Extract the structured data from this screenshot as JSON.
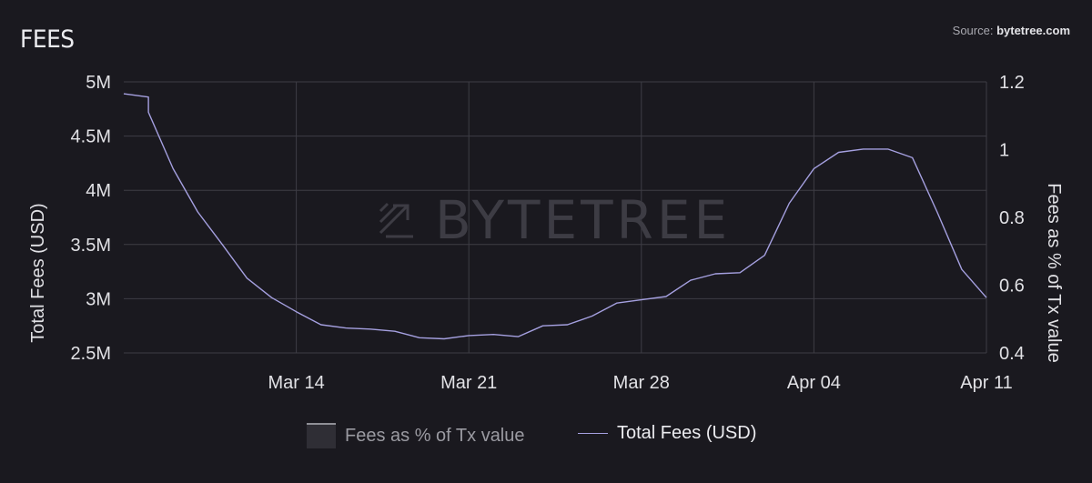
{
  "header": {
    "title": "FEES",
    "source_prefix": "Source: ",
    "source_name": "bytetree.com"
  },
  "watermark": "BYTETREE",
  "legend": {
    "items": [
      {
        "label": "Fees as % of Tx value"
      },
      {
        "label": "Total Fees (USD)"
      }
    ]
  },
  "colors": {
    "background": "#1a191f",
    "line": "#a5a0e0",
    "grid": "#3e3d45"
  },
  "chart_data": {
    "type": "line",
    "xlabel": "",
    "ylabel": "Total Fees (USD)",
    "y2label": "Fees as % of Tx value",
    "x_ticks": [
      "Mar 14",
      "Mar 21",
      "Mar 28",
      "Apr 04",
      "Apr 11"
    ],
    "x_range": [
      "2021-03-07",
      "2021-04-11"
    ],
    "ylim": [
      2500000,
      5000000
    ],
    "y_ticks": [
      "5M",
      "4.5M",
      "4M",
      "3.5M",
      "3M",
      "2.5M"
    ],
    "y2lim": [
      0.4,
      1.2
    ],
    "y2_ticks": [
      "1.2",
      "1",
      "0.8",
      "0.6",
      "0.4"
    ],
    "grid": true,
    "legend_position": "bottom",
    "series": [
      {
        "name": "Total Fees (USD)",
        "axis": "left",
        "points": [
          [
            "2021-03-07",
            4890000
          ],
          [
            "2021-03-08",
            4860000
          ],
          [
            "2021-03-08",
            4720000
          ],
          [
            "2021-03-09",
            4200000
          ],
          [
            "2021-03-10",
            3800000
          ],
          [
            "2021-03-11",
            3500000
          ],
          [
            "2021-03-12",
            3190000
          ],
          [
            "2021-03-13",
            3010000
          ],
          [
            "2021-03-14",
            2880000
          ],
          [
            "2021-03-15",
            2760000
          ],
          [
            "2021-03-16",
            2730000
          ],
          [
            "2021-03-17",
            2720000
          ],
          [
            "2021-03-18",
            2700000
          ],
          [
            "2021-03-19",
            2640000
          ],
          [
            "2021-03-20",
            2630000
          ],
          [
            "2021-03-21",
            2660000
          ],
          [
            "2021-03-22",
            2670000
          ],
          [
            "2021-03-23",
            2650000
          ],
          [
            "2021-03-24",
            2750000
          ],
          [
            "2021-03-25",
            2760000
          ],
          [
            "2021-03-26",
            2840000
          ],
          [
            "2021-03-27",
            2960000
          ],
          [
            "2021-03-28",
            2990000
          ],
          [
            "2021-03-29",
            3020000
          ],
          [
            "2021-03-30",
            3170000
          ],
          [
            "2021-03-31",
            3230000
          ],
          [
            "2021-04-01",
            3240000
          ],
          [
            "2021-04-02",
            3400000
          ],
          [
            "2021-04-03",
            3880000
          ],
          [
            "2021-04-04",
            4200000
          ],
          [
            "2021-04-05",
            4350000
          ],
          [
            "2021-04-06",
            4380000
          ],
          [
            "2021-04-07",
            4380000
          ],
          [
            "2021-04-08",
            4300000
          ],
          [
            "2021-04-09",
            3800000
          ],
          [
            "2021-04-10",
            3270000
          ],
          [
            "2021-04-11",
            3010000
          ]
        ]
      }
    ]
  }
}
